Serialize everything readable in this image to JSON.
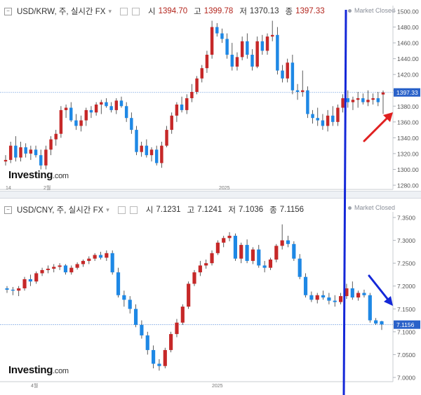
{
  "top": {
    "pair": "USD/KRW, 주, 실시간 FX",
    "open_label": "시",
    "open": "1394.70",
    "high_label": "고",
    "high": "1399.78",
    "low_label": "저",
    "low": "1370.13",
    "close_label": "종",
    "close": "1397.33",
    "status": "Market Closed",
    "logo": "Investing",
    "logo_suffix": ".com",
    "price_tag": "1397.33",
    "x_labels": [
      "14",
      "2월",
      "2025"
    ]
  },
  "bottom": {
    "pair": "USD/CNY, 주, 실시간 FX",
    "open_label": "시",
    "open": "7.1231",
    "high_label": "고",
    "high": "7.1241",
    "low_label": "저",
    "low": "7.1036",
    "close_label": "종",
    "close": "7.1156",
    "status": "Market Closed",
    "logo": "Investing",
    "logo_suffix": ".com",
    "price_tag": "7.1156",
    "x_labels": [
      "4월",
      "2025"
    ]
  },
  "colors": {
    "up": "#c62828",
    "down": "#1e88e5",
    "annot_vertical": "#1428d8",
    "arrow_up": "#e02020",
    "arrow_down": "#1428d8",
    "price_line": "#8fb4e8"
  },
  "chart_data": [
    {
      "type": "candlestick",
      "title": "USD/KRW, 주, 실시간 FX",
      "ylim": [
        1280,
        1500
      ],
      "y_ticks": [
        1500,
        1480,
        1460,
        1440,
        1420,
        1400,
        1380,
        1360,
        1340,
        1320,
        1300,
        1280
      ],
      "last_price": 1397.33,
      "candles": [
        [
          1310,
          1318,
          1305,
          1312
        ],
        [
          1312,
          1335,
          1308,
          1330
        ],
        [
          1330,
          1342,
          1310,
          1315
        ],
        [
          1315,
          1335,
          1310,
          1328
        ],
        [
          1328,
          1333,
          1315,
          1320
        ],
        [
          1320,
          1330,
          1312,
          1325
        ],
        [
          1325,
          1330,
          1315,
          1318
        ],
        [
          1318,
          1325,
          1300,
          1305
        ],
        [
          1305,
          1330,
          1300,
          1325
        ],
        [
          1325,
          1342,
          1318,
          1338
        ],
        [
          1338,
          1350,
          1330,
          1345
        ],
        [
          1345,
          1380,
          1340,
          1375
        ],
        [
          1375,
          1382,
          1365,
          1378
        ],
        [
          1378,
          1385,
          1360,
          1362
        ],
        [
          1362,
          1370,
          1350,
          1355
        ],
        [
          1355,
          1368,
          1348,
          1362
        ],
        [
          1362,
          1378,
          1355,
          1375
        ],
        [
          1375,
          1380,
          1365,
          1372
        ],
        [
          1372,
          1385,
          1368,
          1382
        ],
        [
          1382,
          1388,
          1370,
          1385
        ],
        [
          1385,
          1390,
          1378,
          1380
        ],
        [
          1380,
          1385,
          1372,
          1375
        ],
        [
          1375,
          1390,
          1370,
          1387
        ],
        [
          1387,
          1392,
          1378,
          1380
        ],
        [
          1380,
          1385,
          1360,
          1365
        ],
        [
          1365,
          1372,
          1345,
          1350
        ],
        [
          1350,
          1355,
          1318,
          1322
        ],
        [
          1322,
          1335,
          1316,
          1330
        ],
        [
          1330,
          1338,
          1315,
          1318
        ],
        [
          1318,
          1328,
          1310,
          1325
        ],
        [
          1325,
          1330,
          1305,
          1308
        ],
        [
          1308,
          1335,
          1302,
          1330
        ],
        [
          1330,
          1355,
          1328,
          1350
        ],
        [
          1350,
          1372,
          1345,
          1368
        ],
        [
          1368,
          1385,
          1360,
          1382
        ],
        [
          1382,
          1392,
          1372,
          1375
        ],
        [
          1375,
          1395,
          1370,
          1390
        ],
        [
          1390,
          1408,
          1385,
          1398
        ],
        [
          1398,
          1418,
          1395,
          1415
        ],
        [
          1415,
          1432,
          1410,
          1428
        ],
        [
          1428,
          1450,
          1422,
          1445
        ],
        [
          1445,
          1488,
          1440,
          1480
        ],
        [
          1480,
          1485,
          1468,
          1472
        ],
        [
          1472,
          1478,
          1460,
          1465
        ],
        [
          1465,
          1472,
          1440,
          1445
        ],
        [
          1445,
          1460,
          1425,
          1430
        ],
        [
          1430,
          1448,
          1425,
          1442
        ],
        [
          1442,
          1468,
          1438,
          1462
        ],
        [
          1462,
          1472,
          1440,
          1445
        ],
        [
          1445,
          1452,
          1425,
          1430
        ],
        [
          1430,
          1468,
          1428,
          1462
        ],
        [
          1462,
          1470,
          1445,
          1450
        ],
        [
          1450,
          1472,
          1445,
          1468
        ],
        [
          1468,
          1488,
          1462,
          1470
        ],
        [
          1470,
          1480,
          1420,
          1425
        ],
        [
          1425,
          1432,
          1410,
          1415
        ],
        [
          1415,
          1440,
          1410,
          1435
        ],
        [
          1435,
          1445,
          1395,
          1400
        ],
        [
          1400,
          1408,
          1388,
          1398
        ],
        [
          1398,
          1425,
          1392,
          1400
        ],
        [
          1400,
          1405,
          1365,
          1370
        ],
        [
          1370,
          1375,
          1358,
          1365
        ],
        [
          1365,
          1378,
          1355,
          1362
        ],
        [
          1362,
          1370,
          1350,
          1355
        ],
        [
          1355,
          1375,
          1348,
          1368
        ],
        [
          1368,
          1380,
          1355,
          1360
        ],
        [
          1360,
          1382,
          1355,
          1378
        ],
        [
          1378,
          1395,
          1372,
          1390
        ],
        [
          1390,
          1400,
          1378,
          1385
        ],
        [
          1385,
          1392,
          1375,
          1388
        ],
        [
          1388,
          1398,
          1378,
          1390
        ],
        [
          1390,
          1396,
          1382,
          1385
        ],
        [
          1385,
          1400,
          1380,
          1388
        ],
        [
          1388,
          1396,
          1382,
          1390
        ],
        [
          1390,
          1398,
          1380,
          1385
        ],
        [
          1394.7,
          1399.78,
          1370.13,
          1397.33
        ]
      ]
    },
    {
      "type": "candlestick",
      "title": "USD/CNY, 주, 실시간 FX",
      "ylim": [
        7.0,
        7.35
      ],
      "y_ticks": [
        7.35,
        7.3,
        7.25,
        7.2,
        7.15,
        7.1,
        7.05,
        7.0
      ],
      "last_price": 7.1156,
      "candles": [
        [
          7.195,
          7.2,
          7.185,
          7.192
        ],
        [
          7.192,
          7.198,
          7.18,
          7.19
        ],
        [
          7.19,
          7.2,
          7.178,
          7.195
        ],
        [
          7.195,
          7.22,
          7.19,
          7.215
        ],
        [
          7.215,
          7.225,
          7.2,
          7.21
        ],
        [
          7.21,
          7.232,
          7.205,
          7.228
        ],
        [
          7.228,
          7.24,
          7.222,
          7.235
        ],
        [
          7.235,
          7.245,
          7.228,
          7.238
        ],
        [
          7.238,
          7.248,
          7.23,
          7.242
        ],
        [
          7.242,
          7.25,
          7.235,
          7.245
        ],
        [
          7.245,
          7.248,
          7.225,
          7.23
        ],
        [
          7.23,
          7.245,
          7.225,
          7.24
        ],
        [
          7.24,
          7.252,
          7.236,
          7.248
        ],
        [
          7.248,
          7.258,
          7.242,
          7.255
        ],
        [
          7.255,
          7.265,
          7.248,
          7.26
        ],
        [
          7.26,
          7.272,
          7.255,
          7.268
        ],
        [
          7.268,
          7.275,
          7.258,
          7.262
        ],
        [
          7.262,
          7.278,
          7.255,
          7.272
        ],
        [
          7.272,
          7.278,
          7.225,
          7.23
        ],
        [
          7.23,
          7.24,
          7.175,
          7.18
        ],
        [
          7.18,
          7.19,
          7.155,
          7.17
        ],
        [
          7.17,
          7.178,
          7.14,
          7.15
        ],
        [
          7.15,
          7.16,
          7.11,
          7.115
        ],
        [
          7.115,
          7.125,
          7.085,
          7.092
        ],
        [
          7.092,
          7.1,
          7.05,
          7.06
        ],
        [
          7.06,
          7.07,
          7.02,
          7.03
        ],
        [
          7.03,
          7.04,
          7.015,
          7.025
        ],
        [
          7.025,
          7.065,
          7.02,
          7.06
        ],
        [
          7.06,
          7.1,
          7.055,
          7.095
        ],
        [
          7.095,
          7.128,
          7.088,
          7.12
        ],
        [
          7.12,
          7.16,
          7.115,
          7.155
        ],
        [
          7.155,
          7.21,
          7.15,
          7.205
        ],
        [
          7.205,
          7.235,
          7.2,
          7.23
        ],
        [
          7.23,
          7.255,
          7.222,
          7.245
        ],
        [
          7.245,
          7.258,
          7.238,
          7.25
        ],
        [
          7.25,
          7.278,
          7.245,
          7.272
        ],
        [
          7.272,
          7.3,
          7.268,
          7.295
        ],
        [
          7.295,
          7.31,
          7.285,
          7.305
        ],
        [
          7.305,
          7.318,
          7.298,
          7.31
        ],
        [
          7.31,
          7.315,
          7.255,
          7.26
        ],
        [
          7.26,
          7.295,
          7.25,
          7.29
        ],
        [
          7.29,
          7.302,
          7.25,
          7.255
        ],
        [
          7.255,
          7.285,
          7.248,
          7.28
        ],
        [
          7.28,
          7.29,
          7.24,
          7.245
        ],
        [
          7.245,
          7.255,
          7.23,
          7.24
        ],
        [
          7.24,
          7.262,
          7.235,
          7.258
        ],
        [
          7.258,
          7.292,
          7.252,
          7.288
        ],
        [
          7.288,
          7.335,
          7.28,
          7.3
        ],
        [
          7.3,
          7.31,
          7.285,
          7.292
        ],
        [
          7.292,
          7.298,
          7.255,
          7.26
        ],
        [
          7.26,
          7.27,
          7.215,
          7.22
        ],
        [
          7.22,
          7.228,
          7.175,
          7.18
        ],
        [
          7.18,
          7.188,
          7.165,
          7.17
        ],
        [
          7.17,
          7.185,
          7.162,
          7.18
        ],
        [
          7.18,
          7.19,
          7.17,
          7.175
        ],
        [
          7.175,
          7.185,
          7.16,
          7.168
        ],
        [
          7.168,
          7.18,
          7.155,
          7.165
        ],
        [
          7.165,
          7.185,
          7.16,
          7.178
        ],
        [
          7.178,
          7.205,
          7.172,
          7.195
        ],
        [
          7.195,
          7.21,
          7.17,
          7.175
        ],
        [
          7.175,
          7.19,
          7.168,
          7.185
        ],
        [
          7.185,
          7.192,
          7.175,
          7.18
        ],
        [
          7.18,
          7.185,
          7.12,
          7.125
        ],
        [
          7.125,
          7.13,
          7.115,
          7.118
        ],
        [
          7.123,
          7.124,
          7.104,
          7.116
        ]
      ]
    }
  ]
}
